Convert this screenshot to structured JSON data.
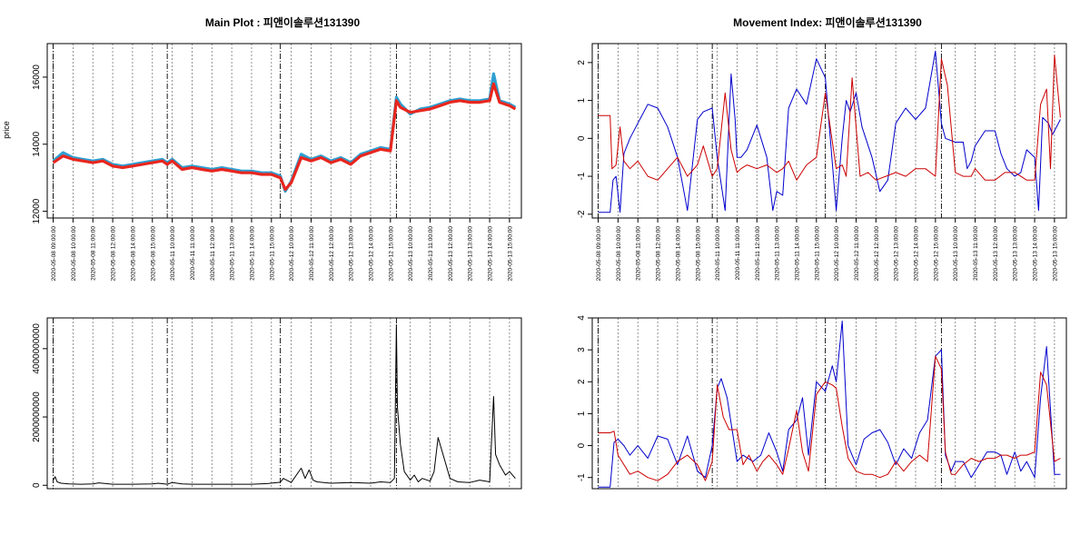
{
  "chart_data": [
    {
      "id": "main",
      "type": "line",
      "title": "Main Plot : 피앤이솔루션131390",
      "ylabel": "price",
      "ylim": [
        11800,
        17000
      ],
      "yticks": [
        12000,
        14000,
        16000
      ],
      "grid": true,
      "x_tick_labels": [
        "2020-05-08 09:00:00",
        "2020-05-08 10:00:00",
        "2020-05-08 11:00:00",
        "2020-05-08 12:00:00",
        "2020-05-08 14:00:00",
        "2020-05-08 15:00:00",
        "2020-05-11 10:00:00",
        "2020-05-11 11:00:00",
        "2020-05-11 12:00:00",
        "2020-05-11 13:00:00",
        "2020-05-11 14:00:00",
        "2020-05-11 15:00:00",
        "2020-05-12 10:00:00",
        "2020-05-12 11:00:00",
        "2020-05-12 12:00:00",
        "2020-05-12 13:00:00",
        "2020-05-12 14:00:00",
        "2020-05-12 15:00:00",
        "2020-05-13 10:00:00",
        "2020-05-13 11:00:00",
        "2020-05-13 12:00:00",
        "2020-05-13 13:00:00",
        "2020-05-13 14:00:00",
        "2020-05-13 15:00:00"
      ],
      "session_starts": [
        0,
        5.75,
        11.45,
        17.3
      ],
      "x_range": [
        -0.3,
        23.6
      ],
      "series": [
        {
          "color": "#2e9fd2",
          "x": [
            0,
            0.5,
            1,
            1.5,
            2,
            2.5,
            3,
            3.5,
            4,
            4.5,
            5,
            5.5,
            5.75,
            6,
            6.5,
            7,
            7.5,
            8,
            8.5,
            9,
            9.5,
            10,
            10.5,
            11,
            11.45,
            11.7,
            12,
            12.5,
            13,
            13.5,
            14,
            14.5,
            15,
            15.5,
            16,
            16.5,
            17,
            17.3,
            17.5,
            18,
            18.5,
            19,
            19.5,
            20,
            20.5,
            21,
            21.5,
            22,
            22.2,
            22.5,
            23,
            23.3
          ],
          "y": [
            13500,
            13750,
            13600,
            13550,
            13500,
            13550,
            13400,
            13350,
            13400,
            13450,
            13500,
            13550,
            13450,
            13550,
            13300,
            13350,
            13300,
            13250,
            13300,
            13250,
            13200,
            13200,
            13150,
            13150,
            13050,
            12600,
            12900,
            13700,
            13550,
            13650,
            13500,
            13600,
            13450,
            13700,
            13800,
            13900,
            13850,
            15400,
            15200,
            14900,
            15050,
            15100,
            15200,
            15300,
            15350,
            15300,
            15300,
            15350,
            16100,
            15300,
            15200,
            15100
          ]
        },
        {
          "color": "#e8261e",
          "x": [
            0,
            0.5,
            1,
            1.5,
            2,
            2.5,
            3,
            3.5,
            4,
            4.5,
            5,
            5.5,
            5.75,
            6,
            6.5,
            7,
            7.5,
            8,
            8.5,
            9,
            9.5,
            10,
            10.5,
            11,
            11.45,
            11.7,
            12,
            12.5,
            13,
            13.5,
            14,
            14.5,
            15,
            15.5,
            16,
            16.5,
            17,
            17.3,
            17.5,
            18,
            18.5,
            19,
            19.5,
            20,
            20.5,
            21,
            21.5,
            22,
            22.2,
            22.5,
            23,
            23.3
          ],
          "y": [
            13450,
            13650,
            13550,
            13500,
            13450,
            13500,
            13350,
            13300,
            13350,
            13400,
            13450,
            13500,
            13400,
            13500,
            13250,
            13300,
            13250,
            13200,
            13250,
            13200,
            13150,
            13150,
            13100,
            13100,
            13000,
            12650,
            12850,
            13600,
            13500,
            13600,
            13450,
            13550,
            13400,
            13650,
            13750,
            13850,
            13800,
            15300,
            15100,
            14950,
            15000,
            15050,
            15150,
            15250,
            15300,
            15250,
            15250,
            15300,
            15800,
            15250,
            15150,
            15050
          ]
        }
      ]
    },
    {
      "id": "volume",
      "type": "line",
      "title": "",
      "ylim": [
        -100000000,
        4900000000
      ],
      "yticks": [
        0,
        2000000000,
        4000000000
      ],
      "ytick_labels": [
        "0",
        "2000000000",
        "4000000000"
      ],
      "grid": true,
      "x_range": [
        -0.3,
        23.6
      ],
      "session_starts": [
        0,
        5.75,
        11.45,
        17.3
      ],
      "series": [
        {
          "color": "#000000",
          "x": [
            0,
            0.1,
            0.2,
            0.4,
            0.8,
            1.4,
            2,
            2.3,
            3,
            4,
            5,
            5.3,
            5.75,
            6,
            6.5,
            7,
            8,
            9,
            10,
            10.8,
            11.45,
            11.6,
            12,
            12.5,
            12.7,
            12.9,
            13.1,
            13.3,
            14,
            15,
            16,
            16.5,
            17,
            17.2,
            17.3,
            17.35,
            17.5,
            17.7,
            18,
            18.2,
            18.4,
            18.6,
            19,
            19.2,
            19.4,
            20,
            20.4,
            21,
            21.5,
            22,
            22.2,
            22.3,
            22.5,
            22.8,
            23,
            23.3
          ],
          "y": [
            150000000,
            250000000,
            100000000,
            60000000,
            40000000,
            30000000,
            40000000,
            70000000,
            30000000,
            30000000,
            40000000,
            60000000,
            30000000,
            80000000,
            40000000,
            30000000,
            30000000,
            30000000,
            30000000,
            50000000,
            90000000,
            200000000,
            80000000,
            500000000,
            200000000,
            450000000,
            150000000,
            100000000,
            60000000,
            80000000,
            60000000,
            100000000,
            80000000,
            200000000,
            4700000000,
            2300000000,
            1200000000,
            400000000,
            150000000,
            300000000,
            100000000,
            200000000,
            120000000,
            400000000,
            1400000000,
            200000000,
            100000000,
            80000000,
            150000000,
            100000000,
            2600000000,
            900000000,
            600000000,
            300000000,
            400000000,
            200000000
          ]
        }
      ]
    },
    {
      "id": "movement-index-top",
      "type": "line",
      "title": "Movement Index: 피앤이솔루션131390",
      "ylim": [
        -2.1,
        2.5
      ],
      "yticks": [
        -2,
        -1,
        0,
        1,
        2
      ],
      "grid": true,
      "x_tick_labels": [
        "2020-05-08 09:00:00",
        "2020-05-08 10:00:00",
        "2020-05-08 11:00:00",
        "2020-05-08 12:00:00",
        "2020-05-08 14:00:00",
        "2020-05-08 15:00:00",
        "2020-05-11 10:00:00",
        "2020-05-11 11:00:00",
        "2020-05-11 12:00:00",
        "2020-05-11 13:00:00",
        "2020-05-11 14:00:00",
        "2020-05-11 15:00:00",
        "2020-05-12 10:00:00",
        "2020-05-12 11:00:00",
        "2020-05-12 12:00:00",
        "2020-05-12 13:00:00",
        "2020-05-12 14:00:00",
        "2020-05-12 15:00:00",
        "2020-05-13 10:00:00",
        "2020-05-13 11:00:00",
        "2020-05-13 12:00:00",
        "2020-05-13 13:00:00",
        "2020-05-13 14:00:00",
        "2020-05-13 15:00:00"
      ],
      "session_starts": [
        0,
        5.75,
        11.45,
        17.3
      ],
      "x_range": [
        -0.3,
        23.6
      ],
      "series": [
        {
          "color": "#0000cc",
          "x": [
            0,
            0.6,
            0.75,
            0.9,
            1.1,
            1.3,
            1.6,
            2,
            2.5,
            3,
            3.5,
            4,
            4.5,
            5,
            5.3,
            5.75,
            6,
            6.4,
            6.7,
            6.9,
            7,
            7.2,
            7.5,
            8,
            8.5,
            8.8,
            9,
            9.3,
            9.6,
            10,
            10.5,
            11,
            11.45,
            12,
            12.3,
            12.5,
            12.7,
            13,
            13.3,
            13.8,
            14.2,
            14.6,
            15,
            15.5,
            16,
            16.5,
            17,
            17.3,
            17.5,
            18,
            18.4,
            18.6,
            18.8,
            19,
            19.5,
            20,
            20.3,
            20.6,
            21,
            21.3,
            21.6,
            22,
            22.2,
            22.4,
            22.7,
            22.9,
            23,
            23.3
          ],
          "y": [
            -1.95,
            -1.95,
            -1.1,
            -1,
            -1.95,
            -0.4,
            0,
            0.4,
            0.9,
            0.8,
            0.3,
            -0.5,
            -1.9,
            0.5,
            0.7,
            0.8,
            -0.5,
            -1.9,
            1.7,
            0.5,
            -0.5,
            -0.5,
            -0.3,
            0.35,
            -0.5,
            -1.9,
            -1.4,
            -1.5,
            0.8,
            1.3,
            0.9,
            2.1,
            1.6,
            -1.9,
            0,
            1,
            0.7,
            1.2,
            0.3,
            -0.5,
            -1.4,
            -1.1,
            0.4,
            0.8,
            0.5,
            0.8,
            2.3,
            0.4,
            0,
            -0.1,
            -0.1,
            -0.8,
            -0.6,
            -0.2,
            0.2,
            0.2,
            -0.4,
            -0.8,
            -1,
            -0.9,
            -0.3,
            -0.5,
            -1.9,
            0.55,
            0.4,
            0.1,
            0.2,
            0.5
          ]
        },
        {
          "color": "#cc0000",
          "x": [
            0,
            0.6,
            0.7,
            0.9,
            1.1,
            1.3,
            1.6,
            2,
            2.5,
            3,
            3.5,
            4,
            4.5,
            5,
            5.3,
            5.75,
            6,
            6.4,
            6.7,
            7,
            7.2,
            7.5,
            8,
            8.5,
            9,
            9.3,
            9.6,
            10,
            10.5,
            11,
            11.45,
            12,
            12.3,
            12.5,
            12.8,
            13.2,
            13.6,
            14,
            14.5,
            15,
            15.5,
            16,
            16.5,
            17,
            17.3,
            17.6,
            18,
            18.4,
            18.8,
            19,
            19.5,
            20,
            20.5,
            21,
            21.3,
            21.6,
            22,
            22.3,
            22.6,
            22.8,
            23,
            23.3
          ],
          "y": [
            0.6,
            0.6,
            -0.8,
            -0.7,
            0.3,
            -0.6,
            -0.8,
            -0.6,
            -1,
            -1.1,
            -0.8,
            -0.5,
            -1,
            -0.7,
            -0.2,
            -1,
            -0.8,
            1.2,
            -0.3,
            -0.9,
            -0.8,
            -0.7,
            -0.8,
            -0.7,
            -0.9,
            -0.8,
            -0.6,
            -1.1,
            -0.7,
            -0.5,
            1.2,
            -0.8,
            -0.7,
            -1,
            1.6,
            -1,
            -0.9,
            -1.1,
            -1,
            -0.9,
            -1,
            -0.8,
            -0.8,
            -1,
            2.1,
            1.4,
            -0.9,
            -1,
            -1,
            -0.8,
            -1.1,
            -1.1,
            -0.9,
            -0.9,
            -1,
            -1.1,
            -1.1,
            0.9,
            1.3,
            -0.8,
            2.2,
            0.55
          ]
        }
      ]
    },
    {
      "id": "movement-index-bottom",
      "type": "line",
      "title": "",
      "ylim": [
        -1.35,
        4
      ],
      "yticks": [
        -1,
        0,
        1,
        2,
        3,
        4
      ],
      "grid": true,
      "x_range": [
        -0.3,
        23.6
      ],
      "session_starts": [
        0,
        5.75,
        11.45,
        17.3
      ],
      "series": [
        {
          "color": "#0000cc",
          "x": [
            0,
            0.6,
            0.8,
            1,
            1.3,
            1.6,
            2,
            2.5,
            3,
            3.5,
            4,
            4.5,
            5,
            5.4,
            5.75,
            6,
            6.2,
            6.5,
            6.8,
            7,
            7.3,
            7.8,
            8.2,
            8.6,
            9,
            9.3,
            9.6,
            10,
            10.3,
            10.6,
            11,
            11.45,
            11.8,
            12,
            12.3,
            12.6,
            13,
            13.4,
            13.8,
            14.2,
            14.6,
            15,
            15.4,
            15.8,
            16.2,
            16.6,
            17,
            17.3,
            17.5,
            17.8,
            18,
            18.4,
            18.8,
            19.2,
            19.6,
            20,
            20.3,
            20.6,
            21,
            21.3,
            21.6,
            22,
            22.3,
            22.6,
            23,
            23.3
          ],
          "y": [
            -1.3,
            -1.3,
            0.1,
            0.2,
            0,
            -0.3,
            0,
            -0.4,
            0.3,
            0.2,
            -0.6,
            0.3,
            -0.8,
            -1,
            0,
            1.8,
            2.1,
            1.5,
            0.3,
            -0.5,
            -0.3,
            -0.5,
            -0.3,
            0.4,
            -0.2,
            -0.8,
            0.5,
            0.8,
            1.5,
            -0.3,
            2,
            1.7,
            2.5,
            2,
            3.9,
            0,
            -0.6,
            0.2,
            0.4,
            0.5,
            0.1,
            -0.6,
            -0.1,
            -0.4,
            0.4,
            0.8,
            2.8,
            3,
            -0.3,
            -0.8,
            -0.5,
            -0.5,
            -1,
            -0.6,
            -0.2,
            -0.2,
            -0.3,
            -0.9,
            -0.2,
            -0.8,
            -0.5,
            -1,
            1.5,
            3.1,
            -0.9,
            -0.9
          ]
        },
        {
          "color": "#cc0000",
          "x": [
            0,
            0.6,
            0.8,
            1,
            1.3,
            1.6,
            2,
            2.5,
            3,
            3.5,
            4,
            4.5,
            5,
            5.4,
            5.75,
            6,
            6.3,
            6.6,
            7,
            7.3,
            7.6,
            8,
            8.3,
            8.6,
            9,
            9.3,
            9.6,
            10,
            10.3,
            10.6,
            11,
            11.45,
            11.8,
            12,
            12.3,
            12.6,
            13,
            13.4,
            13.8,
            14.2,
            14.6,
            15,
            15.4,
            15.8,
            16.2,
            16.6,
            17,
            17.3,
            17.5,
            17.8,
            18,
            18.4,
            18.8,
            19.2,
            19.6,
            20,
            20.3,
            20.6,
            21,
            21.3,
            21.6,
            22,
            22.3,
            22.6,
            23,
            23.3
          ],
          "y": [
            0.4,
            0.4,
            0.45,
            -0.3,
            -0.6,
            -0.9,
            -0.8,
            -1,
            -1.1,
            -0.9,
            -0.5,
            -0.3,
            -0.6,
            -1.1,
            -0.5,
            1.9,
            0.9,
            0.5,
            0.5,
            -0.6,
            -0.3,
            -0.8,
            -0.5,
            -0.3,
            -0.6,
            -0.9,
            -0.1,
            1.1,
            -0.2,
            -0.8,
            1.6,
            2,
            1.9,
            1.8,
            0.6,
            -0.4,
            -0.8,
            -0.9,
            -0.9,
            -1,
            -0.9,
            -0.5,
            -0.8,
            -0.5,
            -0.3,
            -0.5,
            2.8,
            2.4,
            -0.2,
            -0.9,
            -0.9,
            -0.6,
            -0.4,
            -0.5,
            -0.4,
            -0.4,
            -0.3,
            -0.3,
            -0.4,
            -0.3,
            -0.3,
            -0.2,
            2.3,
            1.9,
            -0.5,
            -0.4
          ]
        }
      ]
    }
  ]
}
